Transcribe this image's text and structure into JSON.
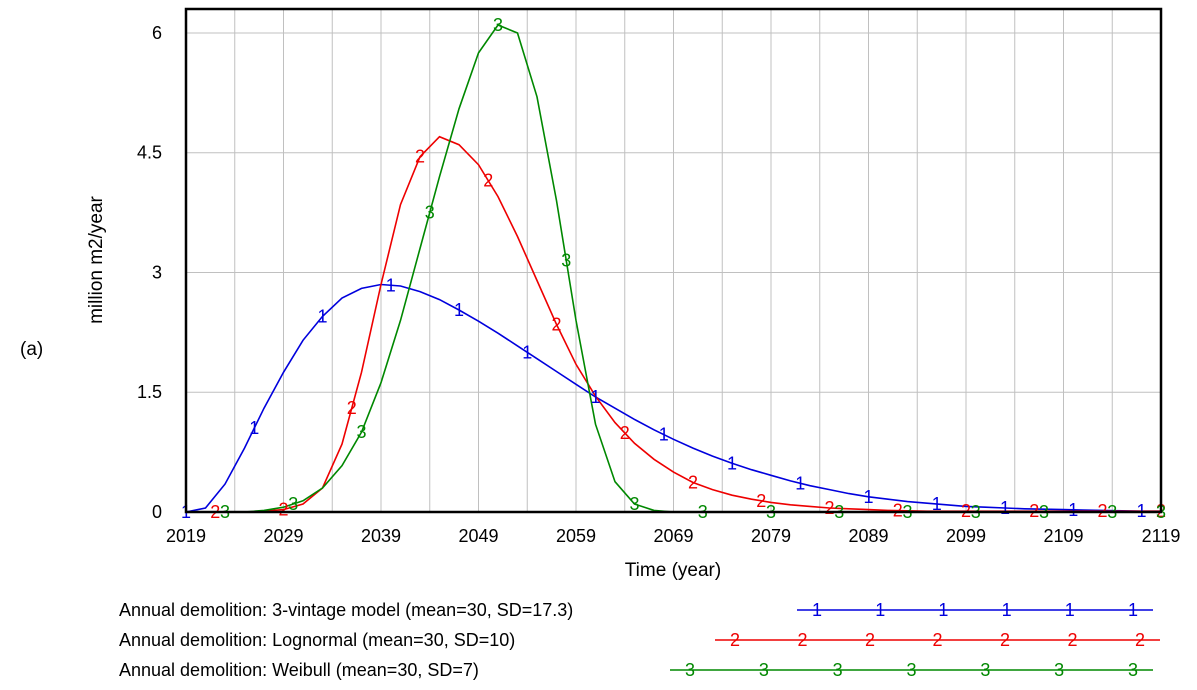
{
  "panel_label": "(a)",
  "chart_data": {
    "type": "line",
    "xlabel": "Time (year)",
    "ylabel": "million m2/year",
    "xlim": [
      2019,
      2119
    ],
    "ylim": [
      0,
      6.3
    ],
    "x_ticks": [
      "2019",
      "2029",
      "2039",
      "2049",
      "2059",
      "2069",
      "2079",
      "2089",
      "2099",
      "2109",
      "2119"
    ],
    "y_ticks": [
      "0",
      "1.5",
      "3",
      "4.5",
      "6"
    ],
    "grid": true,
    "x": [
      2019,
      2021,
      2023,
      2025,
      2027,
      2029,
      2031,
      2033,
      2035,
      2037,
      2039,
      2041,
      2043,
      2045,
      2047,
      2049,
      2051,
      2053,
      2055,
      2057,
      2059,
      2061,
      2063,
      2065,
      2067,
      2069,
      2071,
      2073,
      2075,
      2077,
      2079,
      2081,
      2083,
      2085,
      2087,
      2089,
      2091,
      2093,
      2095,
      2097,
      2099,
      2101,
      2103,
      2105,
      2107,
      2109,
      2111,
      2113,
      2115,
      2117,
      2119
    ],
    "series": [
      {
        "name": "Annual demolition: 3-vintage model (mean=30, SD=17.3)",
        "marker": "1",
        "color": "#0000dd",
        "values": [
          0,
          0.05,
          0.35,
          0.8,
          1.3,
          1.75,
          2.15,
          2.45,
          2.68,
          2.8,
          2.85,
          2.83,
          2.76,
          2.66,
          2.53,
          2.39,
          2.24,
          2.08,
          1.92,
          1.76,
          1.6,
          1.44,
          1.3,
          1.16,
          1.03,
          0.91,
          0.8,
          0.7,
          0.61,
          0.53,
          0.46,
          0.39,
          0.33,
          0.28,
          0.23,
          0.19,
          0.16,
          0.13,
          0.11,
          0.09,
          0.07,
          0.06,
          0.05,
          0.04,
          0.035,
          0.03,
          0.025,
          0.02,
          0.015,
          0.01,
          0.01
        ],
        "marker_x": [
          2019,
          2026,
          2033,
          2040,
          2047,
          2054,
          2061,
          2068,
          2075,
          2082,
          2089,
          2096,
          2103,
          2110,
          2117
        ]
      },
      {
        "name": "Annual demolition: Lognormal (mean=30, SD=10)",
        "marker": "2",
        "color": "#ee0000",
        "values": [
          0,
          0,
          0,
          0,
          0.01,
          0.03,
          0.1,
          0.3,
          0.85,
          1.75,
          2.85,
          3.85,
          4.45,
          4.7,
          4.6,
          4.35,
          3.95,
          3.45,
          2.9,
          2.35,
          1.85,
          1.45,
          1.12,
          0.86,
          0.66,
          0.5,
          0.37,
          0.28,
          0.21,
          0.16,
          0.12,
          0.09,
          0.07,
          0.05,
          0.04,
          0.03,
          0.02,
          0.015,
          0.01,
          0.01,
          0.01,
          0.01,
          0.01,
          0.01,
          0.01,
          0.01,
          0.01,
          0.01,
          0.01,
          0.01,
          0.01
        ],
        "marker_x": [
          2022,
          2029,
          2036,
          2043,
          2050,
          2057,
          2064,
          2071,
          2078,
          2085,
          2092,
          2099,
          2106,
          2113,
          2119
        ]
      },
      {
        "name": "Annual demolition: Weibull (mean=30, SD=7)",
        "marker": "3",
        "color": "#008800",
        "values": [
          0,
          0,
          0,
          0,
          0.02,
          0.06,
          0.14,
          0.3,
          0.58,
          1.0,
          1.62,
          2.4,
          3.3,
          4.2,
          5.05,
          5.75,
          6.1,
          6.0,
          5.2,
          3.9,
          2.4,
          1.1,
          0.38,
          0.1,
          0.02,
          0,
          0,
          0,
          0,
          0,
          0,
          0,
          0,
          0,
          0,
          0,
          0,
          0,
          0,
          0,
          0,
          0,
          0,
          0,
          0,
          0,
          0,
          0,
          0,
          0,
          0
        ],
        "marker_x": [
          2023,
          2030,
          2037,
          2044,
          2051,
          2058,
          2065,
          2072,
          2079,
          2086,
          2093,
          2100,
          2107,
          2114,
          2119
        ]
      }
    ]
  }
}
